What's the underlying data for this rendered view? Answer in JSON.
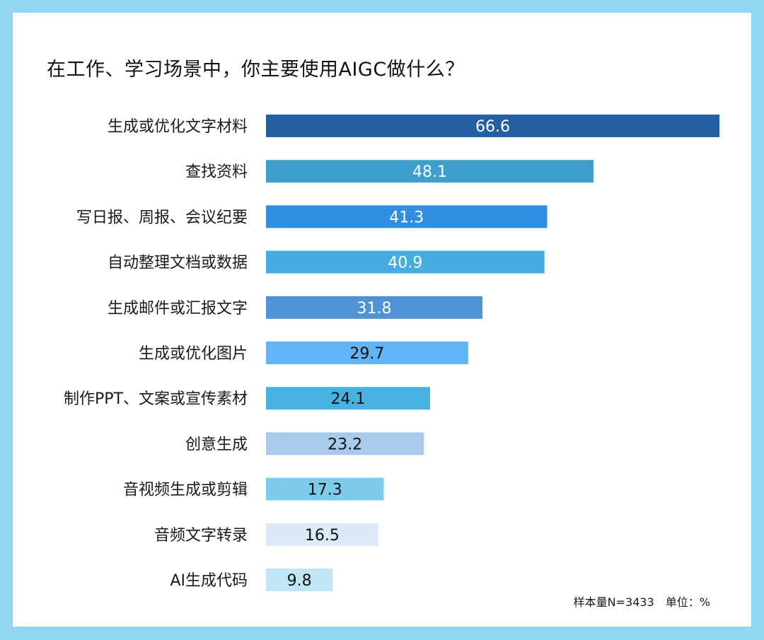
{
  "title": "在工作、学习场景中，你主要使用AIGC做什么？",
  "footnote": {
    "sample": "样本量N=3433",
    "unit": "单位：%"
  },
  "chart_data": {
    "type": "bar",
    "orientation": "horizontal",
    "title": "在工作、学习场景中，你主要使用AIGC做什么？",
    "xlim": [
      0,
      66.6
    ],
    "unit": "%",
    "categories": [
      "生成或优化文字材料",
      "查找资料",
      "写日报、周报、会议纪要",
      "自动整理文档或数据",
      "生成邮件或汇报文字",
      "生成或优化图片",
      "制作PPT、文案或宣传素材",
      "创意生成",
      "音视频生成或剪辑",
      "音频文字转录",
      "AI生成代码"
    ],
    "values": [
      66.6,
      48.1,
      41.3,
      40.9,
      31.8,
      29.7,
      24.1,
      23.2,
      17.3,
      16.5,
      9.8
    ],
    "value_labels": [
      "66.6",
      "48.1",
      "41.3",
      "40.9",
      "31.8",
      "29.7",
      "24.1",
      "23.2",
      "17.3",
      "16.5",
      "9.8"
    ],
    "colors": [
      "#2360a0",
      "#3d9ecb",
      "#2f8ee0",
      "#45ade2",
      "#4f92d6",
      "#61b5f6",
      "#47b1e2",
      "#a8caeb",
      "#7dcbec",
      "#dce9f7",
      "#c0e6f8"
    ],
    "label_colors": [
      "#ffffff",
      "#ffffff",
      "#ffffff",
      "#ffffff",
      "#ffffff",
      "#111111",
      "#111111",
      "#111111",
      "#111111",
      "#111111",
      "#111111"
    ]
  }
}
